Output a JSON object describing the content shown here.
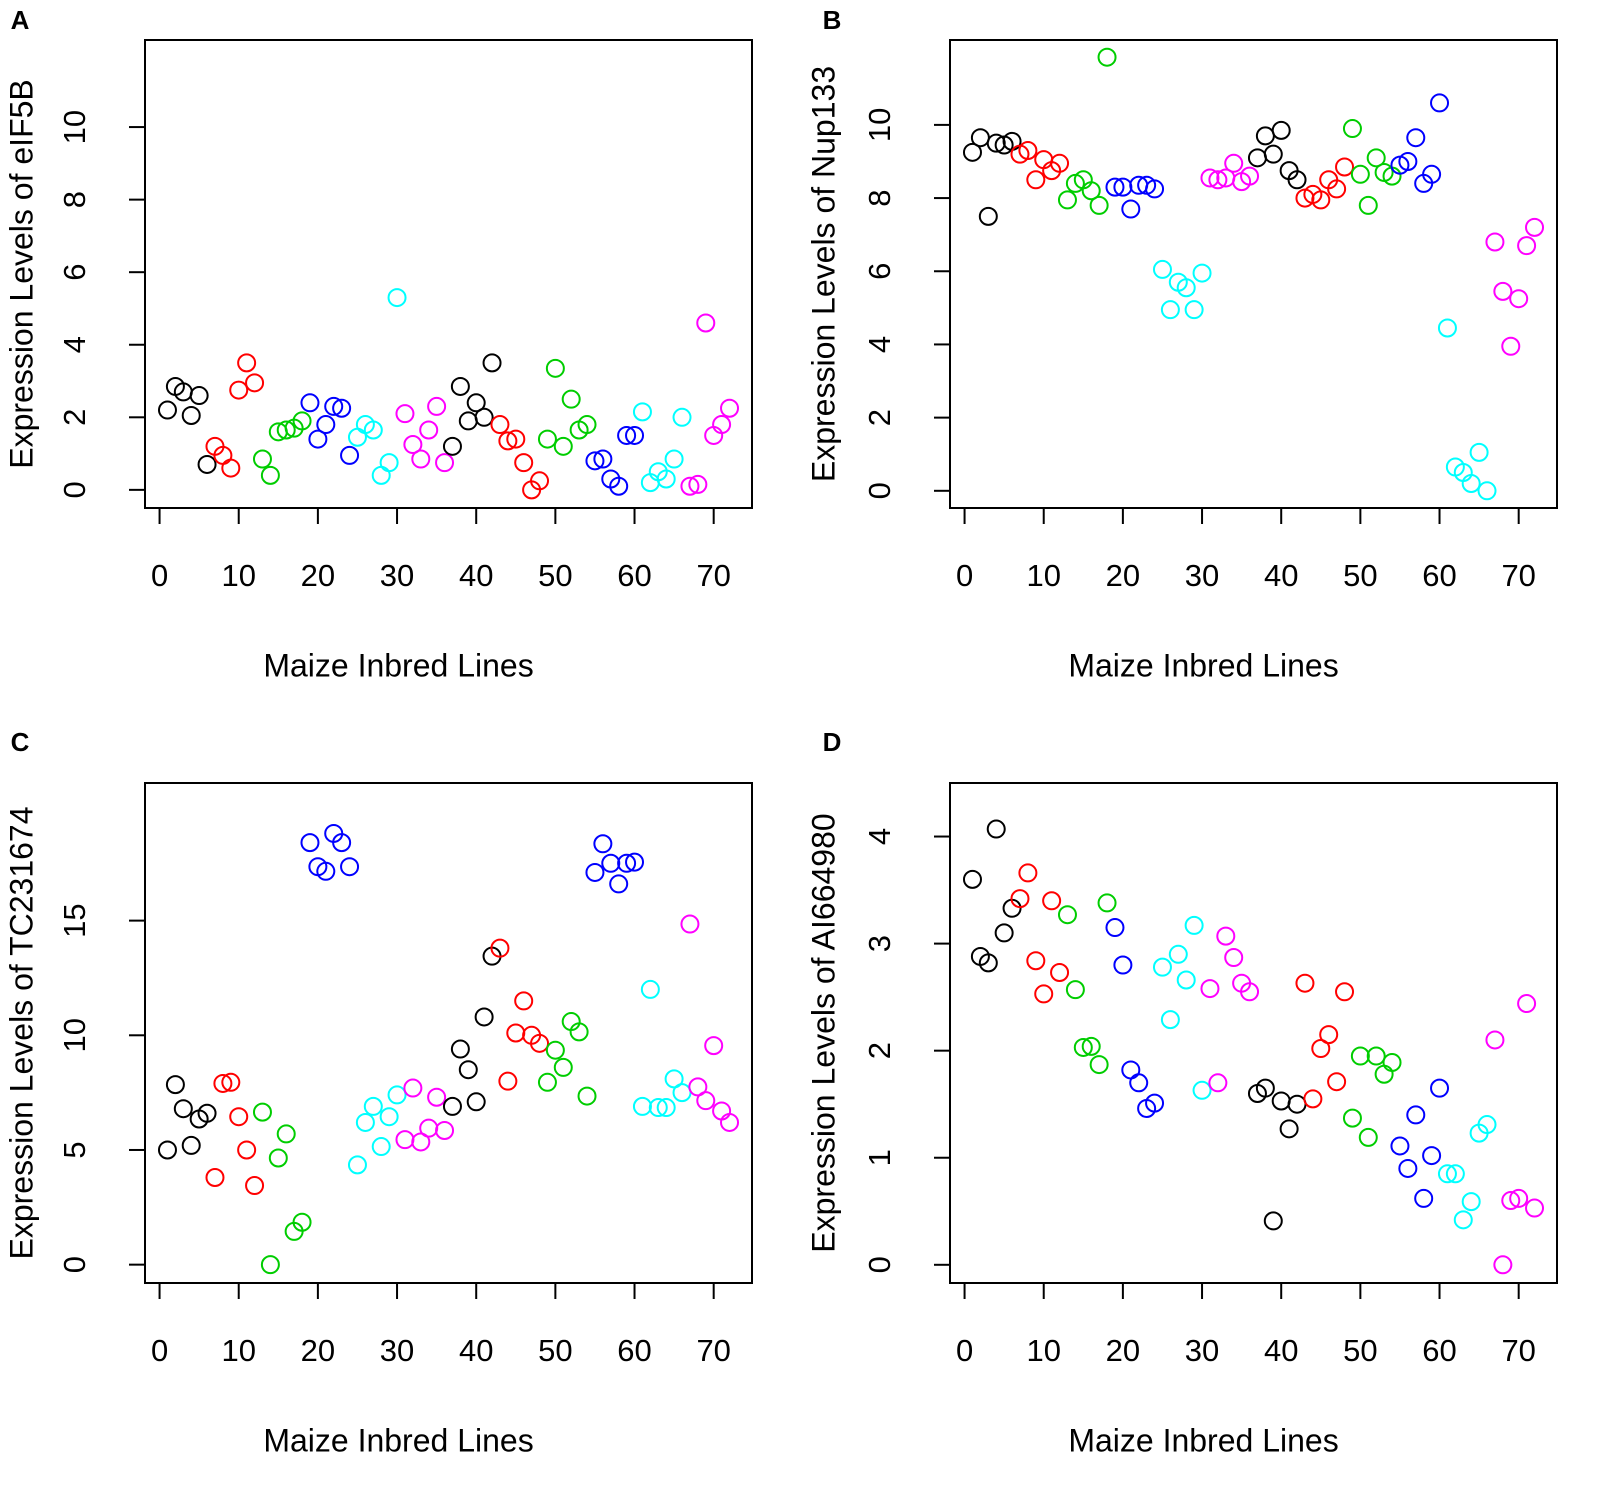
{
  "chart_data": [
    {
      "type": "scatter",
      "label": "A",
      "xlabel": "Maize Inbred Lines",
      "ylabel": "Expression Levels of eIF5B",
      "xlim": [
        -1.84,
        74.84
      ],
      "ylim": [
        -0.5,
        12.4
      ],
      "xticks": [
        0,
        10,
        20,
        30,
        40,
        50,
        60,
        70
      ],
      "yticks": [
        0,
        2,
        4,
        6,
        8,
        10
      ],
      "series": [
        {
          "color": "#000000",
          "x": [
            1,
            2,
            3,
            4,
            5,
            6
          ],
          "values": [
            2.2,
            2.85,
            2.7,
            2.05,
            2.6,
            0.7
          ]
        },
        {
          "color": "#ff0000",
          "x": [
            7,
            8,
            9,
            10,
            11,
            12
          ],
          "values": [
            1.2,
            0.95,
            0.6,
            2.75,
            3.5,
            2.95
          ]
        },
        {
          "color": "#00cd00",
          "x": [
            13,
            14,
            15,
            16,
            17,
            18
          ],
          "values": [
            0.85,
            0.4,
            1.6,
            1.65,
            1.7,
            1.9
          ]
        },
        {
          "color": "#0000ff",
          "x": [
            19,
            20,
            21,
            22,
            23,
            24
          ],
          "values": [
            2.4,
            1.4,
            1.8,
            2.3,
            2.25,
            0.95
          ]
        },
        {
          "color": "#00ffff",
          "x": [
            25,
            26,
            27,
            28,
            29,
            30
          ],
          "values": [
            1.45,
            1.8,
            1.65,
            0.4,
            0.75,
            5.3
          ]
        },
        {
          "color": "#ff00ff",
          "x": [
            31,
            32,
            33,
            34,
            35,
            36
          ],
          "values": [
            2.1,
            1.25,
            0.85,
            1.65,
            2.3,
            0.75
          ]
        },
        {
          "color": "#000000",
          "x": [
            37,
            38,
            39,
            40,
            41,
            42
          ],
          "values": [
            1.2,
            2.85,
            1.9,
            2.4,
            2.0,
            3.5
          ]
        },
        {
          "color": "#ff0000",
          "x": [
            43,
            44,
            45,
            46,
            47,
            48
          ],
          "values": [
            1.8,
            1.35,
            1.4,
            0.75,
            0.0,
            0.25
          ]
        },
        {
          "color": "#00cd00",
          "x": [
            49,
            50,
            51,
            52,
            53,
            54
          ],
          "values": [
            1.4,
            3.35,
            1.2,
            2.5,
            1.65,
            1.8
          ]
        },
        {
          "color": "#0000ff",
          "x": [
            55,
            56,
            57,
            58,
            59,
            60
          ],
          "values": [
            0.8,
            0.85,
            0.3,
            0.1,
            1.5,
            1.5
          ]
        },
        {
          "color": "#00ffff",
          "x": [
            61,
            62,
            63,
            64,
            65,
            66
          ],
          "values": [
            2.15,
            0.2,
            0.5,
            0.3,
            0.85,
            2.0
          ]
        },
        {
          "color": "#ff00ff",
          "x": [
            67,
            68,
            69,
            70,
            71,
            72
          ],
          "values": [
            0.1,
            0.15,
            4.6,
            1.5,
            1.8,
            2.25
          ]
        }
      ]
    },
    {
      "type": "scatter",
      "label": "B",
      "xlabel": "Maize Inbred Lines",
      "ylabel": "Expression Levels of Nup133",
      "xlim": [
        -1.84,
        74.84
      ],
      "ylim": [
        -0.47,
        12.32
      ],
      "xticks": [
        0,
        10,
        20,
        30,
        40,
        50,
        60,
        70
      ],
      "yticks": [
        0,
        2,
        4,
        6,
        8,
        10
      ],
      "series": [
        {
          "color": "#000000",
          "x": [
            1,
            2,
            3,
            4,
            5,
            6
          ],
          "values": [
            9.25,
            9.65,
            7.5,
            9.5,
            9.45,
            9.55
          ]
        },
        {
          "color": "#ff0000",
          "x": [
            7,
            8,
            9,
            10,
            11,
            12
          ],
          "values": [
            9.2,
            9.3,
            8.5,
            9.05,
            8.75,
            8.95
          ]
        },
        {
          "color": "#00cd00",
          "x": [
            13,
            14,
            15,
            16,
            17,
            18
          ],
          "values": [
            7.95,
            8.4,
            8.5,
            8.2,
            7.8,
            11.85
          ]
        },
        {
          "color": "#0000ff",
          "x": [
            19,
            20,
            21,
            22,
            23,
            24
          ],
          "values": [
            8.3,
            8.3,
            7.7,
            8.35,
            8.35,
            8.25
          ]
        },
        {
          "color": "#00ffff",
          "x": [
            25,
            26,
            27,
            28,
            29,
            30
          ],
          "values": [
            6.05,
            4.95,
            5.7,
            5.55,
            4.95,
            5.95
          ]
        },
        {
          "color": "#ff00ff",
          "x": [
            31,
            32,
            33,
            34,
            35,
            36
          ],
          "values": [
            8.55,
            8.5,
            8.55,
            8.95,
            8.45,
            8.6
          ]
        },
        {
          "color": "#000000",
          "x": [
            37,
            38,
            39,
            40,
            41,
            42
          ],
          "values": [
            9.1,
            9.7,
            9.2,
            9.85,
            8.75,
            8.5
          ]
        },
        {
          "color": "#ff0000",
          "x": [
            43,
            44,
            45,
            46,
            47,
            48
          ],
          "values": [
            8.0,
            8.1,
            7.95,
            8.5,
            8.25,
            8.85
          ]
        },
        {
          "color": "#00cd00",
          "x": [
            49,
            50,
            51,
            52,
            53,
            54
          ],
          "values": [
            9.9,
            8.65,
            7.8,
            9.1,
            8.7,
            8.6
          ]
        },
        {
          "color": "#0000ff",
          "x": [
            55,
            56,
            57,
            58,
            59,
            60
          ],
          "values": [
            8.9,
            9.0,
            9.65,
            8.4,
            8.65,
            10.6
          ]
        },
        {
          "color": "#00ffff",
          "x": [
            61,
            62,
            63,
            64,
            65,
            66
          ],
          "values": [
            4.45,
            0.65,
            0.5,
            0.2,
            1.05,
            0.0
          ]
        },
        {
          "color": "#ff00ff",
          "x": [
            67,
            68,
            69,
            70,
            71,
            72
          ],
          "values": [
            6.8,
            5.45,
            3.95,
            5.25,
            6.7,
            7.2
          ]
        }
      ]
    },
    {
      "type": "scatter",
      "label": "C",
      "xlabel": "Maize Inbred Lines",
      "ylabel": "Expression Levels of TC231674",
      "xlim": [
        -1.84,
        74.84
      ],
      "ylim": [
        -0.8,
        21
      ],
      "xticks": [
        0,
        10,
        20,
        30,
        40,
        50,
        60,
        70
      ],
      "yticks": [
        0,
        5,
        10,
        15
      ],
      "series": [
        {
          "color": "#000000",
          "x": [
            1,
            2,
            3,
            4,
            5,
            6
          ],
          "values": [
            5.0,
            7.85,
            6.8,
            5.2,
            6.35,
            6.6
          ]
        },
        {
          "color": "#ff0000",
          "x": [
            7,
            8,
            9,
            10,
            11,
            12
          ],
          "values": [
            3.8,
            7.9,
            7.95,
            6.45,
            5.0,
            3.45
          ]
        },
        {
          "color": "#00cd00",
          "x": [
            13,
            14,
            15,
            16,
            17,
            18
          ],
          "values": [
            6.65,
            0.0,
            4.65,
            5.7,
            1.45,
            1.85
          ]
        },
        {
          "color": "#0000ff",
          "x": [
            19,
            20,
            21,
            22,
            23,
            24
          ],
          "values": [
            18.4,
            17.35,
            17.15,
            18.8,
            18.4,
            17.35
          ]
        },
        {
          "color": "#00ffff",
          "x": [
            25,
            26,
            27,
            28,
            29,
            30
          ],
          "values": [
            4.35,
            6.2,
            6.9,
            5.15,
            6.45,
            7.4
          ]
        },
        {
          "color": "#ff00ff",
          "x": [
            31,
            32,
            33,
            34,
            35,
            36
          ],
          "values": [
            5.45,
            7.7,
            5.35,
            5.95,
            7.3,
            5.85
          ]
        },
        {
          "color": "#000000",
          "x": [
            37,
            38,
            39,
            40,
            41,
            42
          ],
          "values": [
            6.9,
            9.4,
            8.5,
            7.1,
            10.8,
            13.45
          ]
        },
        {
          "color": "#ff0000",
          "x": [
            43,
            44,
            45,
            46,
            47,
            48
          ],
          "values": [
            13.8,
            8.0,
            10.1,
            11.5,
            10.0,
            9.65
          ]
        },
        {
          "color": "#00cd00",
          "x": [
            49,
            50,
            51,
            52,
            53,
            54
          ],
          "values": [
            7.95,
            9.35,
            8.6,
            10.6,
            10.15,
            7.35
          ]
        },
        {
          "color": "#0000ff",
          "x": [
            55,
            56,
            57,
            58,
            59,
            60
          ],
          "values": [
            17.1,
            18.35,
            17.5,
            16.6,
            17.5,
            17.55
          ]
        },
        {
          "color": "#00ffff",
          "x": [
            61,
            62,
            63,
            64,
            65,
            66
          ],
          "values": [
            6.9,
            12.0,
            6.85,
            6.85,
            8.1,
            7.5
          ]
        },
        {
          "color": "#ff00ff",
          "x": [
            67,
            68,
            69,
            70,
            71,
            72
          ],
          "values": [
            14.85,
            7.75,
            7.15,
            9.55,
            6.7,
            6.2
          ]
        }
      ]
    },
    {
      "type": "scatter",
      "label": "D",
      "xlabel": "Maize Inbred Lines",
      "ylabel": "Expression Levels of AI664980",
      "xlim": [
        -1.84,
        74.84
      ],
      "ylim": [
        -0.17,
        4.5
      ],
      "xticks": [
        0,
        10,
        20,
        30,
        40,
        50,
        60,
        70
      ],
      "yticks": [
        0,
        1,
        2,
        3,
        4
      ],
      "series": [
        {
          "color": "#000000",
          "x": [
            1,
            2,
            3,
            4,
            5,
            6
          ],
          "values": [
            3.6,
            2.88,
            2.82,
            4.07,
            3.1,
            3.33
          ]
        },
        {
          "color": "#ff0000",
          "x": [
            7,
            8,
            9,
            10,
            11,
            12
          ],
          "values": [
            3.42,
            3.66,
            2.84,
            2.53,
            3.4,
            2.73
          ]
        },
        {
          "color": "#00cd00",
          "x": [
            13,
            14,
            15,
            16,
            17,
            18
          ],
          "values": [
            3.27,
            2.57,
            2.03,
            2.04,
            1.87,
            3.38
          ]
        },
        {
          "color": "#0000ff",
          "x": [
            19,
            20,
            21,
            22,
            23,
            24
          ],
          "values": [
            3.15,
            2.8,
            1.82,
            1.7,
            1.46,
            1.51
          ]
        },
        {
          "color": "#00ffff",
          "x": [
            25,
            26,
            27,
            28,
            29,
            30
          ],
          "values": [
            2.78,
            2.29,
            2.9,
            2.66,
            3.17,
            1.63
          ]
        },
        {
          "color": "#ff00ff",
          "x": [
            31,
            32,
            33,
            34,
            35,
            36
          ],
          "values": [
            2.58,
            1.7,
            3.07,
            2.87,
            2.63,
            2.55
          ]
        },
        {
          "color": "#000000",
          "x": [
            37,
            38,
            39,
            40,
            41,
            42
          ],
          "values": [
            1.6,
            1.65,
            0.41,
            1.53,
            1.27,
            1.5
          ]
        },
        {
          "color": "#ff0000",
          "x": [
            43,
            44,
            45,
            46,
            47,
            48
          ],
          "values": [
            2.63,
            1.55,
            2.02,
            2.15,
            1.71,
            2.55
          ]
        },
        {
          "color": "#00cd00",
          "x": [
            49,
            50,
            51,
            52,
            53,
            54
          ],
          "values": [
            1.37,
            1.95,
            1.19,
            1.95,
            1.78,
            1.89
          ]
        },
        {
          "color": "#0000ff",
          "x": [
            55,
            56,
            57,
            58,
            59,
            60
          ],
          "values": [
            1.11,
            0.9,
            1.4,
            0.62,
            1.02,
            1.65
          ]
        },
        {
          "color": "#00ffff",
          "x": [
            61,
            62,
            63,
            64,
            65,
            66
          ],
          "values": [
            0.85,
            0.85,
            0.42,
            0.59,
            1.23,
            1.31
          ]
        },
        {
          "color": "#ff00ff",
          "x": [
            67,
            68,
            69,
            70,
            71,
            72
          ],
          "values": [
            2.1,
            0.0,
            0.6,
            0.62,
            2.44,
            0.53
          ]
        }
      ]
    }
  ]
}
